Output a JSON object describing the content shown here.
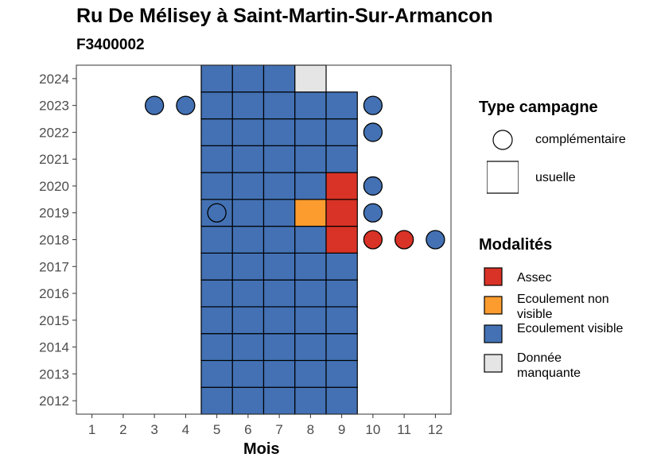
{
  "title": "Ru De Mélisey à Saint-Martin-Sur-Armancon",
  "subtitle": "F3400002",
  "chart_data": {
    "type": "heatmap",
    "title": "Ru De Mélisey à Saint-Martin-Sur-Armancon",
    "subtitle": "F3400002",
    "xlabel": "Mois",
    "ylabel": "",
    "x_ticks": [
      "1",
      "2",
      "3",
      "4",
      "5",
      "6",
      "7",
      "8",
      "9",
      "10",
      "11",
      "12"
    ],
    "y_ticks": [
      "2012",
      "2013",
      "2014",
      "2015",
      "2016",
      "2017",
      "2018",
      "2019",
      "2020",
      "2021",
      "2022",
      "2023",
      "2024"
    ],
    "xlim": [
      0.5,
      12.5
    ],
    "ylim": [
      2011.5,
      2024.5
    ],
    "grid": false,
    "colors": {
      "Assec": "#d93226",
      "Ecoulement non visible": "#fd9c2e",
      "Ecoulement visible": "#4371b4",
      "Donnée manquante": "#e5e5e5"
    },
    "usuelle": [
      {
        "year": 2012,
        "months": [
          5,
          6,
          7,
          8,
          9
        ],
        "modalite": "Ecoulement visible"
      },
      {
        "year": 2013,
        "months": [
          5,
          6,
          7,
          8,
          9
        ],
        "modalite": "Ecoulement visible"
      },
      {
        "year": 2014,
        "months": [
          5,
          6,
          7,
          8,
          9
        ],
        "modalite": "Ecoulement visible"
      },
      {
        "year": 2015,
        "months": [
          5,
          6,
          7,
          8,
          9
        ],
        "modalite": "Ecoulement visible"
      },
      {
        "year": 2016,
        "months": [
          5,
          6,
          7,
          8,
          9
        ],
        "modalite": "Ecoulement visible"
      },
      {
        "year": 2017,
        "months": [
          5,
          6,
          7,
          8,
          9
        ],
        "modalite": "Ecoulement visible"
      },
      {
        "year": 2018,
        "months": [
          5,
          6,
          7,
          8
        ],
        "modalite": "Ecoulement visible"
      },
      {
        "year": 2018,
        "months": [
          9
        ],
        "modalite": "Assec"
      },
      {
        "year": 2019,
        "months": [
          5,
          6,
          7
        ],
        "modalite": "Ecoulement visible"
      },
      {
        "year": 2019,
        "months": [
          8
        ],
        "modalite": "Ecoulement non visible"
      },
      {
        "year": 2019,
        "months": [
          9
        ],
        "modalite": "Assec"
      },
      {
        "year": 2020,
        "months": [
          5,
          6,
          7,
          8
        ],
        "modalite": "Ecoulement visible"
      },
      {
        "year": 2020,
        "months": [
          9
        ],
        "modalite": "Assec"
      },
      {
        "year": 2021,
        "months": [
          5,
          6,
          7,
          8,
          9
        ],
        "modalite": "Ecoulement visible"
      },
      {
        "year": 2022,
        "months": [
          5,
          6,
          7,
          8,
          9
        ],
        "modalite": "Ecoulement visible"
      },
      {
        "year": 2023,
        "months": [
          5,
          6,
          7,
          8,
          9
        ],
        "modalite": "Ecoulement visible"
      },
      {
        "year": 2024,
        "months": [
          5,
          6,
          7
        ],
        "modalite": "Ecoulement visible"
      },
      {
        "year": 2024,
        "months": [
          8
        ],
        "modalite": "Donnée manquante"
      }
    ],
    "complementaire": [
      {
        "year": 2023,
        "month": 3,
        "modalite": "Ecoulement visible"
      },
      {
        "year": 2023,
        "month": 4,
        "modalite": "Ecoulement visible"
      },
      {
        "year": 2023,
        "month": 10,
        "modalite": "Ecoulement visible"
      },
      {
        "year": 2022,
        "month": 10,
        "modalite": "Ecoulement visible"
      },
      {
        "year": 2020,
        "month": 10,
        "modalite": "Ecoulement visible"
      },
      {
        "year": 2019,
        "month": 5,
        "modalite": "Ecoulement visible"
      },
      {
        "year": 2019,
        "month": 10,
        "modalite": "Ecoulement visible"
      },
      {
        "year": 2018,
        "month": 10,
        "modalite": "Assec"
      },
      {
        "year": 2018,
        "month": 11,
        "modalite": "Assec"
      },
      {
        "year": 2018,
        "month": 12,
        "modalite": "Ecoulement visible"
      }
    ]
  },
  "legend": {
    "type_title": "Type campagne",
    "type_items": [
      "complémentaire",
      "usuelle"
    ],
    "mod_title": "Modalités",
    "mod_items": [
      {
        "label": "Assec",
        "color": "#d93226"
      },
      {
        "label": "Ecoulement non visible",
        "color": "#fd9c2e"
      },
      {
        "label": "Ecoulement visible",
        "color": "#4371b4"
      },
      {
        "label": "Donnée manquante",
        "color": "#e5e5e5"
      }
    ]
  }
}
